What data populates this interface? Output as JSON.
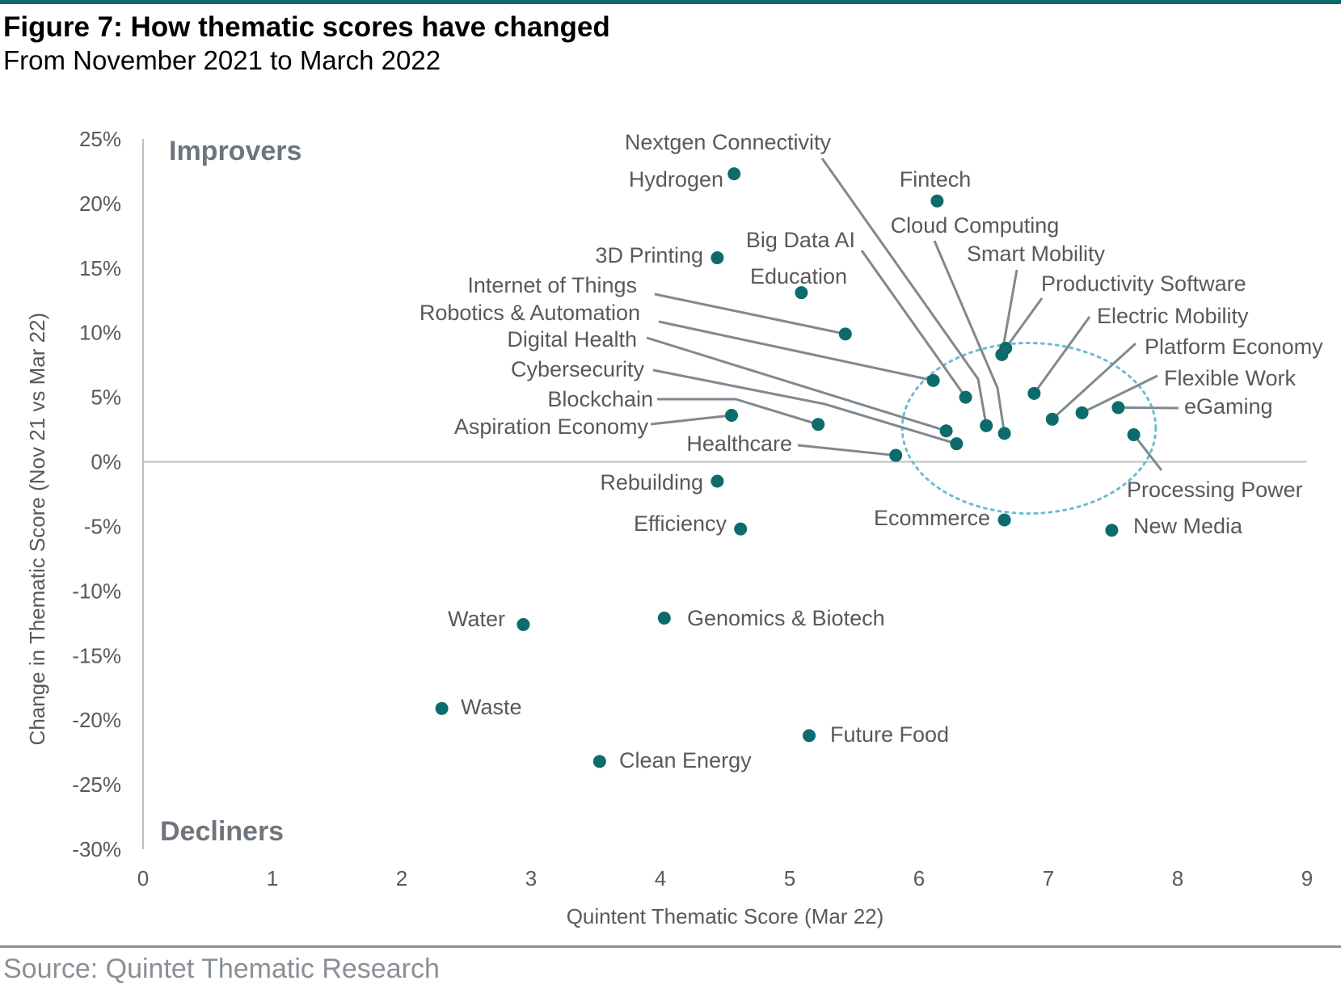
{
  "header": {
    "title": "Figure 7: How thematic scores have changed",
    "subtitle": "From November 2021 to March 2022"
  },
  "footer": {
    "source": "Source: Quintet Thematic Research"
  },
  "colors": {
    "marker": "#0e6b6b",
    "text": "#595959",
    "axis": "#bfbfbf",
    "leader": "#808890",
    "highlight": "#6cbcd4",
    "rule": "#0e6b6b"
  },
  "chart_data": {
    "type": "scatter",
    "xlabel": "Quintent Thematic Score (Mar 22)",
    "ylabel": "Change in Thematic Score (Nov 21 vs Mar 22)",
    "xlim": [
      0,
      9
    ],
    "ylim": [
      -30,
      25
    ],
    "x_ticks": [
      "0",
      "1",
      "2",
      "3",
      "4",
      "5",
      "6",
      "7",
      "8",
      "9"
    ],
    "y_ticks": [
      "25%",
      "20%",
      "15%",
      "10%",
      "5%",
      "0%",
      "-5%",
      "-10%",
      "-15%",
      "-20%",
      "-25%",
      "-30%"
    ],
    "quadrant_labels": {
      "top": "Improvers",
      "bottom": "Decliners"
    },
    "highlight_region": {
      "type": "ellipse",
      "cx": 6.85,
      "cy": 2.6,
      "rx": 0.98,
      "ry": 6.6
    },
    "points": [
      {
        "label": "Hydrogen",
        "x": 4.57,
        "y": 22.3
      },
      {
        "label": "Fintech",
        "x": 6.14,
        "y": 20.2
      },
      {
        "label": "3D Printing",
        "x": 4.44,
        "y": 15.8
      },
      {
        "label": "Education",
        "x": 5.09,
        "y": 13.1
      },
      {
        "label": "Internet of Things",
        "x": 5.43,
        "y": 9.9
      },
      {
        "label": "Robotics & Automation",
        "x": 6.11,
        "y": 6.3
      },
      {
        "label": "Big Data AI",
        "x": 6.36,
        "y": 5.0
      },
      {
        "label": "Nextgen Connectivity",
        "x": 6.52,
        "y": 2.8
      },
      {
        "label": "Cloud Computing",
        "x": 6.66,
        "y": 2.2
      },
      {
        "label": "Smart Mobility",
        "x": 6.64,
        "y": 8.3
      },
      {
        "label": "Productivity Software",
        "x": 6.67,
        "y": 8.8
      },
      {
        "label": "Electric Mobility",
        "x": 6.89,
        "y": 5.3
      },
      {
        "label": "Platform Economy",
        "x": 7.03,
        "y": 3.3
      },
      {
        "label": "Flexible Work",
        "x": 7.26,
        "y": 3.8
      },
      {
        "label": "eGaming",
        "x": 7.54,
        "y": 4.2
      },
      {
        "label": "Processing Power",
        "x": 7.66,
        "y": 2.1
      },
      {
        "label": "Digital Health",
        "x": 6.21,
        "y": 2.4
      },
      {
        "label": "Cybersecurity",
        "x": 6.29,
        "y": 1.4
      },
      {
        "label": "Blockchain",
        "x": 5.22,
        "y": 2.9
      },
      {
        "label": "Aspiration Economy",
        "x": 4.55,
        "y": 3.6
      },
      {
        "label": "Healthcare",
        "x": 5.82,
        "y": 0.5
      },
      {
        "label": "Rebuilding",
        "x": 4.44,
        "y": -1.5
      },
      {
        "label": "Efficiency",
        "x": 4.62,
        "y": -5.2
      },
      {
        "label": "Ecommerce",
        "x": 6.66,
        "y": -4.5
      },
      {
        "label": "New Media",
        "x": 7.49,
        "y": -5.3
      },
      {
        "label": "Water",
        "x": 2.94,
        "y": -12.6
      },
      {
        "label": "Genomics & Biotech",
        "x": 4.03,
        "y": -12.1
      },
      {
        "label": "Waste",
        "x": 2.31,
        "y": -19.1
      },
      {
        "label": "Future Food",
        "x": 5.15,
        "y": -21.2
      },
      {
        "label": "Clean Energy",
        "x": 3.53,
        "y": -23.2
      }
    ]
  }
}
